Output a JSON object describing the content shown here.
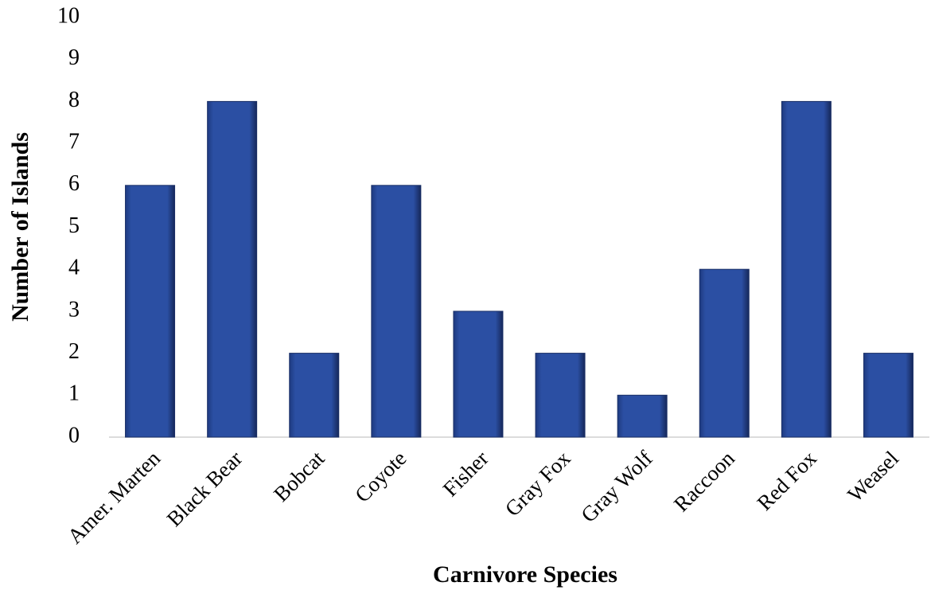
{
  "chart_data": {
    "type": "bar",
    "x_label": "Carnivore Species",
    "y_label": "Number of Islands",
    "categories": [
      "Amer. Marten",
      "Black Bear",
      "Bobcat",
      "Coyote",
      "Fisher",
      "Gray Fox",
      "Gray Wolf",
      "Raccoon",
      "Red Fox",
      "Weasel"
    ],
    "values": [
      6,
      8,
      2,
      6,
      3,
      2,
      1,
      4,
      8,
      2
    ],
    "color": "#2b4fa3",
    "ylim": [
      0,
      10
    ],
    "yticks": [
      0,
      1,
      2,
      3,
      4,
      5,
      6,
      7,
      8,
      9,
      10
    ],
    "grid": false
  }
}
